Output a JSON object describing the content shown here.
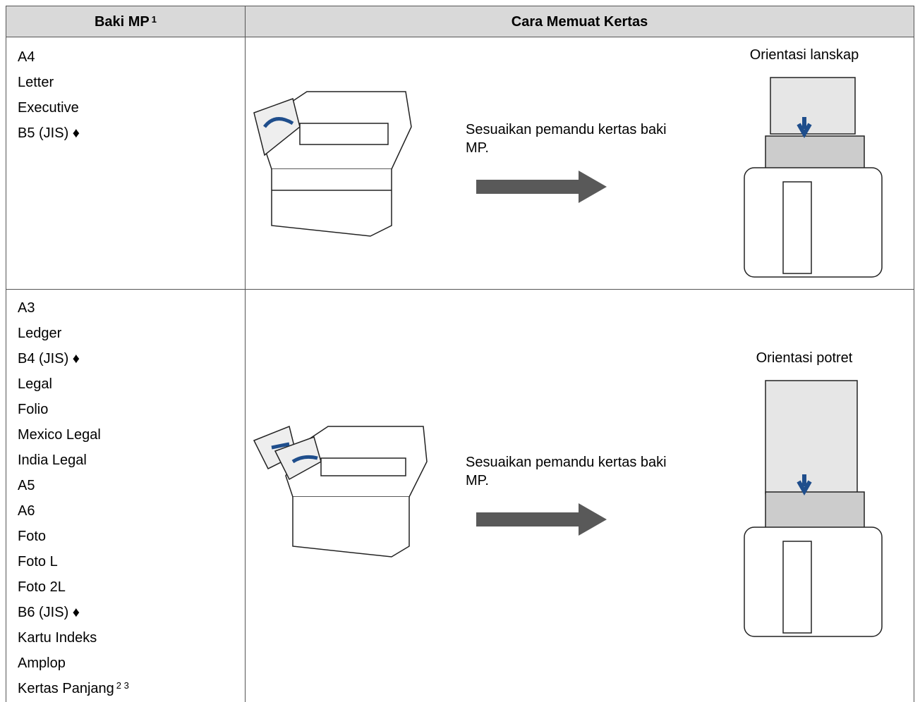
{
  "table": {
    "header": {
      "col1": "Baki MP",
      "col1_note": "1",
      "col2": "Cara Memuat Kertas"
    },
    "rows": [
      {
        "sizes": [
          "A4",
          "Letter",
          "Executive",
          "B5 (JIS) ♦"
        ],
        "instruction": "Sesuaikan pemandu kertas baki MP.",
        "orientation": "Orientasi lanskap"
      },
      {
        "sizes": [
          "A3",
          "Ledger",
          "B4 (JIS) ♦",
          "Legal",
          "Folio",
          "Mexico Legal",
          "India Legal",
          "A5",
          "A6",
          "Foto",
          "Foto L",
          "Foto 2L",
          "B6 (JIS) ♦",
          "Kartu Indeks",
          "Amplop",
          "Kertas Panjang"
        ],
        "last_note": "2 3",
        "instruction": "Sesuaikan pemandu kertas baki MP.",
        "orientation": "Orientasi potret"
      }
    ]
  }
}
